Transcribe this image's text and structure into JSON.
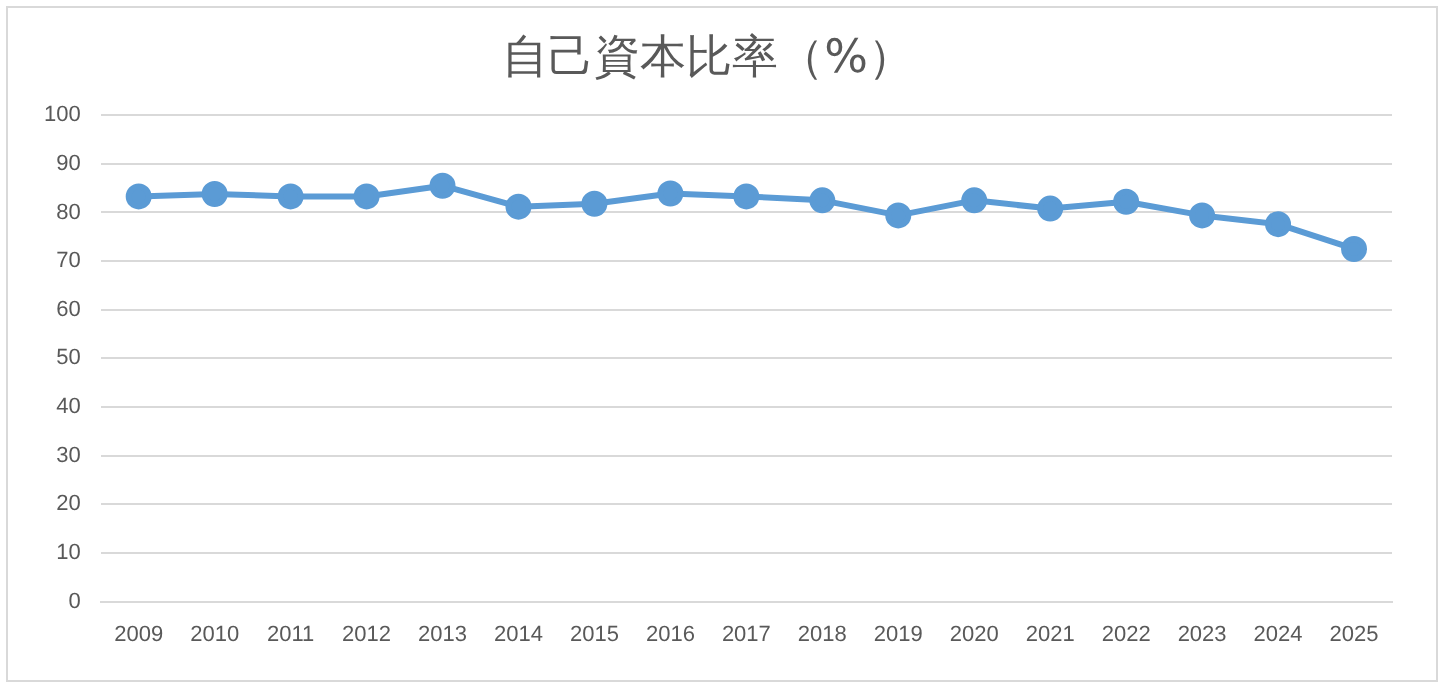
{
  "chart_data": {
    "type": "line",
    "title": "自己資本比率（%）",
    "categories": [
      "2009",
      "2010",
      "2011",
      "2012",
      "2013",
      "2014",
      "2015",
      "2016",
      "2017",
      "2018",
      "2019",
      "2020",
      "2021",
      "2022",
      "2023",
      "2024",
      "2025"
    ],
    "series": [
      {
        "color": "#5b9bd5",
        "values": [
          83.3,
          83.8,
          83.3,
          83.3,
          85.5,
          81.2,
          81.8,
          83.9,
          83.3,
          82.5,
          79.4,
          82.5,
          80.8,
          82.2,
          79.4,
          77.6,
          72.5
        ]
      }
    ],
    "ylim": [
      0,
      100
    ],
    "yticks": [
      0,
      10,
      20,
      30,
      40,
      50,
      60,
      70,
      80,
      90,
      100
    ],
    "grid": "y",
    "legend": false,
    "marker": "circle",
    "line_style": "solid"
  }
}
